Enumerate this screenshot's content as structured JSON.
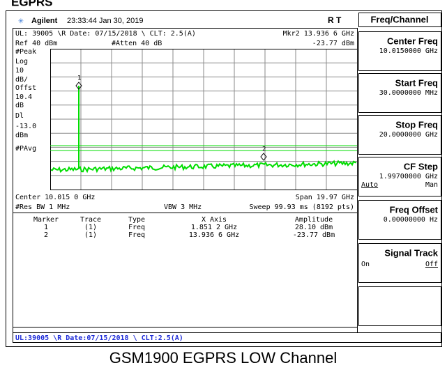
{
  "header": {
    "top_label": "EGPRS",
    "brand": "Agilent",
    "timestamp": "23:33:44  Jan 30, 2019",
    "status": "R   T"
  },
  "screen": {
    "line1": "UL: 39005 \\R Date: 07/15/2018 \\ CLT: 2.5(A)",
    "marker_readout": "Mkr2  13.936 6 GHz",
    "ref": "Ref 40 dBm",
    "atten": "#Atten 40 dB",
    "marker_amp": "-23.77 dBm",
    "left_labels": [
      "#Peak",
      "Log",
      "10",
      "dB/",
      "Offst",
      "10.4",
      "dB",
      "Dl",
      "-13.0",
      "dBm",
      "#PAvg"
    ],
    "marker1_label": "1",
    "marker2_label": "2",
    "center": "Center 10.015 0 GHz",
    "span": "Span 19.97 GHz",
    "rbw": "#Res BW 1 MHz",
    "vbw": "VBW 3 MHz",
    "sweep": "Sweep 99.93 ms (8192 pts)",
    "table": {
      "headers": [
        "Marker",
        "Trace",
        "Type",
        "X Axis",
        "Amplitude"
      ],
      "rows": [
        [
          "1",
          "(1)",
          "Freq",
          "1.851 2 GHz",
          "28.10 dBm"
        ],
        [
          "2",
          "(1)",
          "Freq",
          "13.936 6 GHz",
          "-23.77 dBm"
        ]
      ]
    },
    "status_bar": "UL:39005 \\R Date:07/15/2018 \\ CLT:2.5(A)"
  },
  "menu": {
    "title": "Freq/Channel",
    "keys": [
      {
        "label": "Center Freq",
        "value": "10.0150000 GHz"
      },
      {
        "label": "Start Freq",
        "value": "30.0000000 MHz"
      },
      {
        "label": "Stop Freq",
        "value": "20.0000000 GHz"
      },
      {
        "label": "CF Step",
        "value": "1.99700000 GHz",
        "left": "Auto",
        "right": "Man"
      },
      {
        "label": "Freq Offset",
        "value": "0.00000000 Hz"
      },
      {
        "label": "Signal Track",
        "left": "On",
        "right": "Off"
      }
    ]
  },
  "caption": "GSM1900 EGPRS LOW Channel"
}
